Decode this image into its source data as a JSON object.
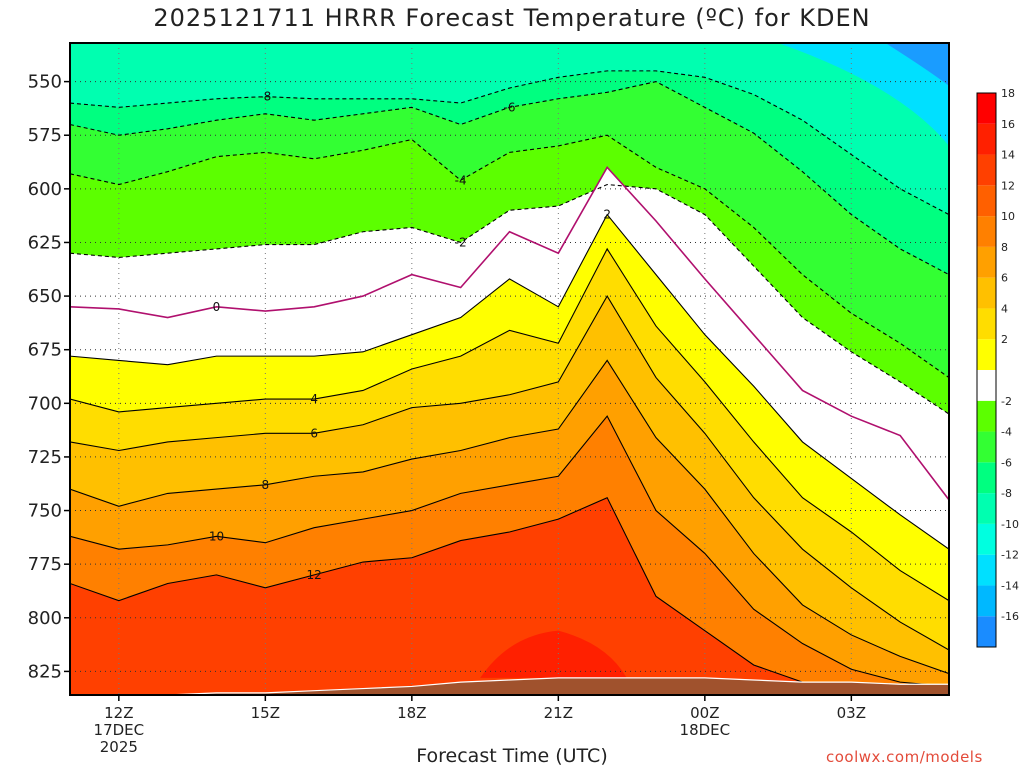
{
  "title": "2025121711 HRRR Forecast Temperature (ºC) for KDEN",
  "credit": "coolwx.com/models",
  "chart_data": {
    "type": "heatmap",
    "title": "2025121711 HRRR Forecast Temperature (ºC) for KDEN",
    "xlabel": "Forecast Time (UTC)",
    "ylabel": "",
    "y_axis": {
      "ticks": [
        550,
        575,
        600,
        625,
        650,
        675,
        700,
        725,
        750,
        775,
        800,
        825
      ],
      "range": [
        532,
        836
      ],
      "inverted": true
    },
    "x_axis": {
      "range_hours_utc": [
        11,
        29
      ],
      "ticks": [
        {
          "hour": 12,
          "label": [
            "12Z",
            "17DEC",
            "2025"
          ]
        },
        {
          "hour": 15,
          "label": [
            "15Z"
          ]
        },
        {
          "hour": 18,
          "label": [
            "18Z"
          ]
        },
        {
          "hour": 21,
          "label": [
            "21Z"
          ]
        },
        {
          "hour": 24,
          "label": [
            "00Z",
            "18DEC"
          ]
        },
        {
          "hour": 27,
          "label": [
            "03Z"
          ]
        }
      ]
    },
    "grid": true,
    "colorbar": {
      "position": "right",
      "labels": [
        -16,
        -14,
        -12,
        -10,
        -8,
        -6,
        -4,
        -2,
        2,
        4,
        6,
        8,
        10,
        12,
        14,
        16,
        18
      ],
      "colors": [
        "#1a8cff",
        "#00b8ff",
        "#00e0ff",
        "#00ffe0",
        "#00ffb0",
        "#00ff80",
        "#33ff33",
        "#5cff00",
        "#ffffff",
        "#ffff00",
        "#ffdd00",
        "#ffc000",
        "#ffa000",
        "#ff8000",
        "#ff6000",
        "#ff4000",
        "#ff2000",
        "#ff0000"
      ]
    },
    "time_hours": [
      11,
      12,
      13,
      14,
      15,
      16,
      17,
      18,
      19,
      20,
      21,
      22,
      23,
      24,
      25,
      26,
      27,
      28,
      29
    ],
    "contours": [
      {
        "level": -8,
        "label": "-8",
        "pressure": [
          560,
          562,
          560,
          558,
          557,
          558,
          558,
          558,
          560,
          553,
          548,
          545,
          545,
          548,
          556,
          568,
          584,
          600,
          612
        ]
      },
      {
        "level": -6,
        "label": "-6",
        "pressure": [
          570,
          575,
          572,
          568,
          565,
          568,
          565,
          562,
          570,
          562,
          558,
          555,
          550,
          562,
          574,
          592,
          612,
          628,
          640
        ]
      },
      {
        "level": -4,
        "label": "-4",
        "pressure": [
          593,
          598,
          592,
          585,
          583,
          586,
          582,
          577,
          596,
          583,
          580,
          575,
          590,
          600,
          618,
          640,
          658,
          672,
          688
        ]
      },
      {
        "level": -2,
        "label": "-2",
        "pressure": [
          630,
          632,
          630,
          628,
          626,
          626,
          620,
          618,
          625,
          610,
          608,
          598,
          600,
          612,
          636,
          660,
          676,
          690,
          705
        ]
      },
      {
        "level": 0,
        "label": "0",
        "pressure": [
          655,
          656,
          660,
          655,
          657,
          655,
          650,
          640,
          646,
          620,
          630,
          590,
          615,
          642,
          668,
          694,
          706,
          715,
          745
        ]
      },
      {
        "level": 2,
        "label": "2",
        "pressure": [
          678,
          680,
          682,
          678,
          678,
          678,
          676,
          668,
          660,
          642,
          655,
          612,
          640,
          668,
          692,
          718,
          735,
          752,
          768
        ]
      },
      {
        "level": 4,
        "label": "4",
        "pressure": [
          698,
          704,
          702,
          700,
          698,
          698,
          694,
          684,
          678,
          666,
          672,
          628,
          664,
          690,
          718,
          744,
          760,
          778,
          792
        ]
      },
      {
        "level": 6,
        "label": "6",
        "pressure": [
          718,
          722,
          718,
          716,
          714,
          714,
          710,
          702,
          700,
          696,
          690,
          650,
          688,
          714,
          744,
          768,
          786,
          802,
          815
        ]
      },
      {
        "level": 8,
        "label": "8",
        "pressure": [
          740,
          748,
          742,
          740,
          738,
          734,
          732,
          726,
          722,
          716,
          712,
          680,
          716,
          740,
          770,
          794,
          808,
          818,
          826
        ]
      },
      {
        "level": 10,
        "label": "10",
        "pressure": [
          762,
          768,
          766,
          762,
          765,
          758,
          754,
          750,
          742,
          738,
          734,
          706,
          750,
          770,
          796,
          812,
          824,
          830,
          832
        ]
      },
      {
        "level": 12,
        "label": "12",
        "pressure": [
          784,
          792,
          784,
          780,
          786,
          780,
          774,
          772,
          764,
          760,
          754,
          744,
          790,
          806,
          822,
          830,
          834,
          836,
          836
        ]
      }
    ],
    "terrain_pressure": [
      838,
      836,
      836,
      835,
      835,
      834,
      833,
      832,
      830,
      829,
      828,
      828,
      828,
      828,
      829,
      830,
      830,
      831,
      831
    ]
  }
}
